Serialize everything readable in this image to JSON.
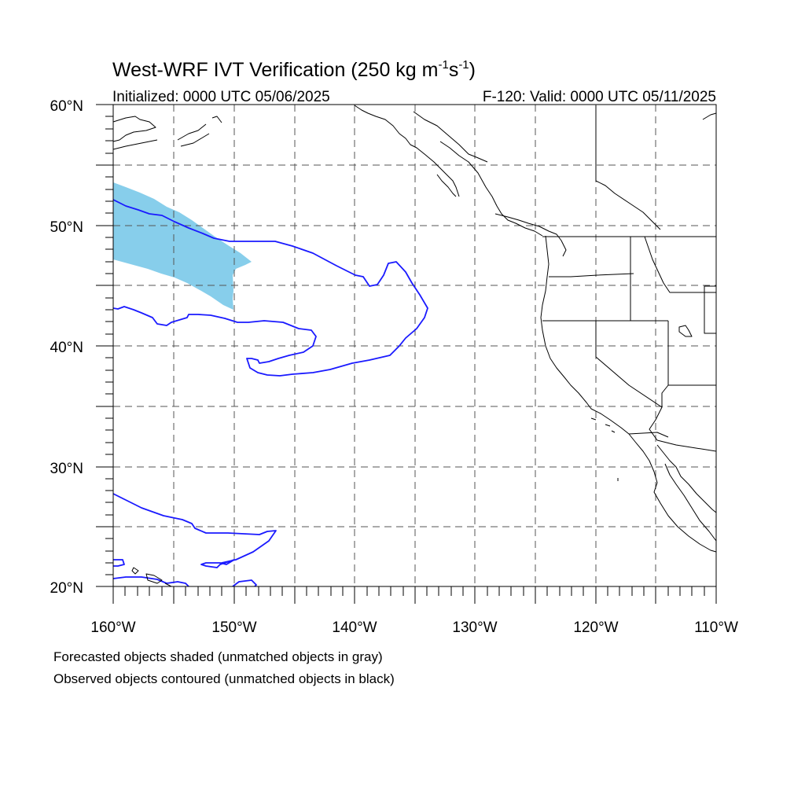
{
  "title": {
    "main": "West-WRF IVT Verification (250 kg m",
    "sup1": "-1",
    "mid": "s",
    "sup2": "-1",
    "end": ")"
  },
  "subtitle_left": "Initialized: 0000 UTC 05/06/2025",
  "subtitle_right": "F-120: Valid: 0000 UTC 05/11/2025",
  "axes": {
    "lat_labels": [
      "60°N",
      "50°N",
      "40°N",
      "30°N",
      "20°N"
    ],
    "lon_labels": [
      "160°W",
      "150°W",
      "140°W",
      "130°W",
      "120°W",
      "110°W"
    ],
    "lat_range": [
      20,
      60
    ],
    "lon_range": [
      -160,
      -110
    ],
    "grid": "dashed, every 5°"
  },
  "legend": {
    "line1": "Forecasted objects shaded (unmatched objects in gray)",
    "line2": "Observed objects contoured (unmatched objects in black)"
  },
  "colors": {
    "forecast_fill": "#87ceeb",
    "observed_contour": "#1a1aff",
    "coastline": "#000000",
    "grid": "#555555"
  }
}
